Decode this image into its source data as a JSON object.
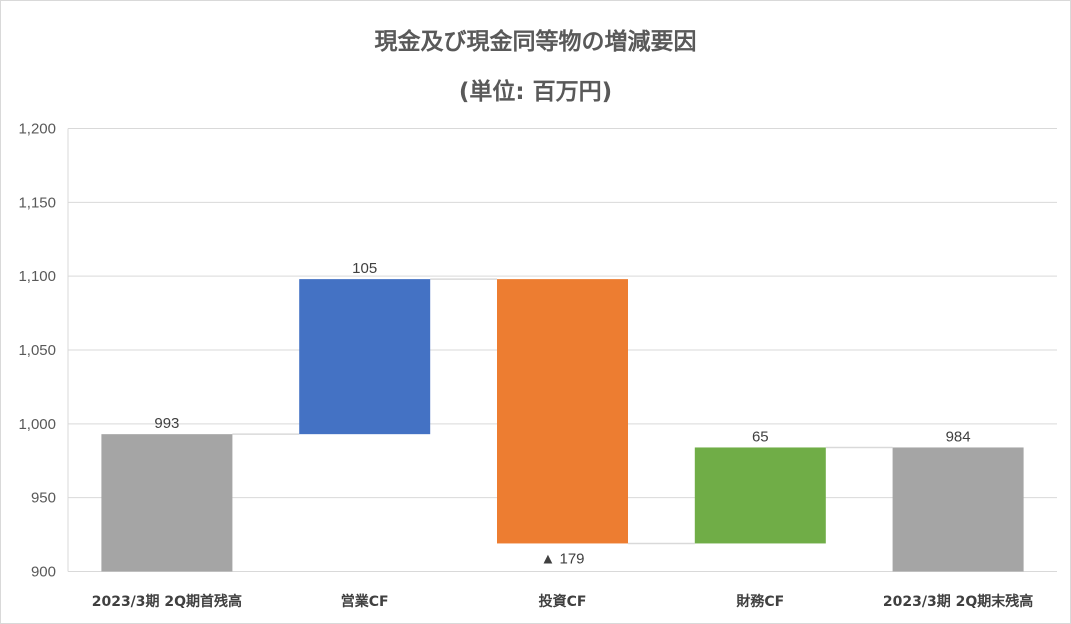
{
  "chart_data": {
    "type": "waterfall",
    "title": "現金及び現金同等物の増減要因",
    "subtitle": "(単位: 百万円)",
    "ylim": [
      900,
      1200
    ],
    "y_ticks": [
      "900",
      "950",
      "1,000",
      "1,050",
      "1,100",
      "1,150",
      "1,200"
    ],
    "grid": true,
    "categories": [
      "2023/3期 2Q期首残高",
      "営業CF",
      "投資CF",
      "財務CF",
      "2023/3期 2Q期末残高"
    ],
    "values": [
      993,
      105,
      -179,
      65,
      984
    ],
    "kinds": [
      "total",
      "delta",
      "delta",
      "delta",
      "total"
    ],
    "data_labels": [
      "993",
      "105",
      "▲ 179",
      "65",
      "984"
    ],
    "colors": [
      "#a5a5a5",
      "#4472c4",
      "#ed7d31",
      "#70ad47",
      "#a5a5a5"
    ]
  }
}
